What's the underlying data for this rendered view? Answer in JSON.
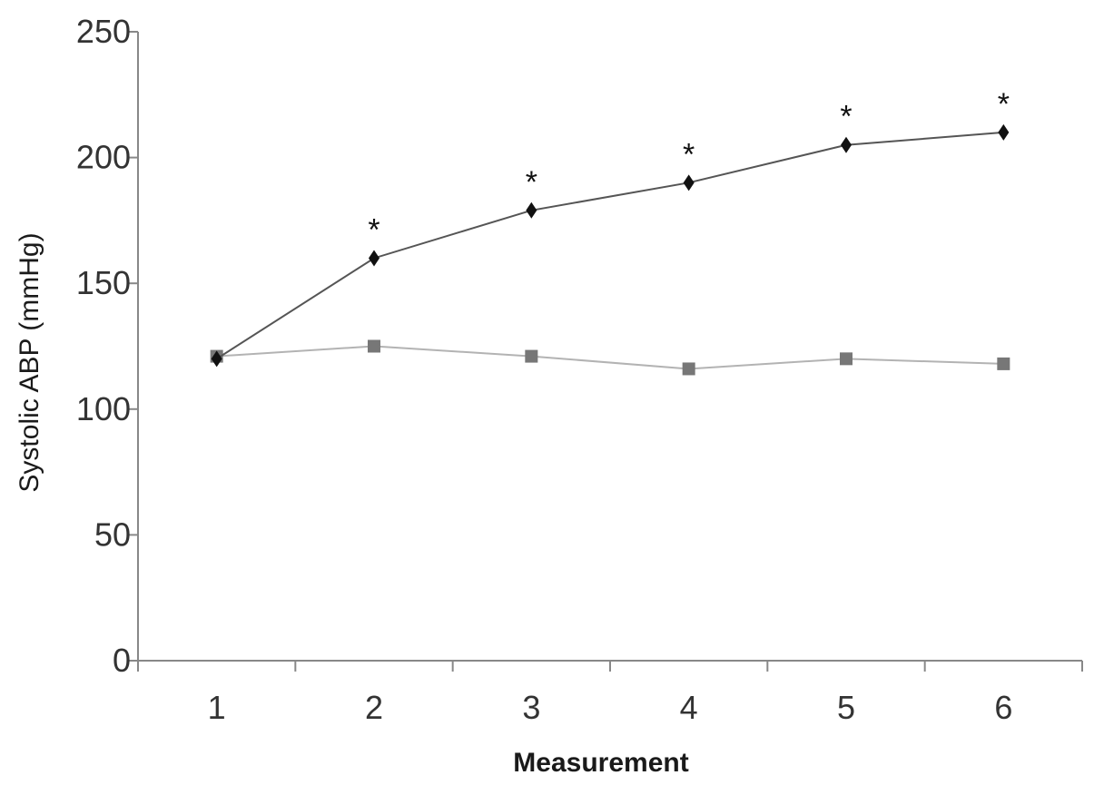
{
  "chart_data": {
    "type": "line",
    "title": "",
    "xlabel": "Measurement",
    "ylabel": "Systolic ABP (mmHg)",
    "categories": [
      "1",
      "2",
      "3",
      "4",
      "5",
      "6"
    ],
    "xlim": [
      0.5,
      6.5
    ],
    "ylim": [
      0,
      250
    ],
    "yticks": [
      "0",
      "50",
      "100",
      "150",
      "200",
      "250"
    ],
    "grid": false,
    "legend": "none",
    "series": [
      {
        "marker": "diamond",
        "color": "#111111",
        "line_color": "#555555",
        "values": [
          120,
          160,
          179,
          190,
          205,
          210
        ],
        "annotations": [
          "",
          "*",
          "*",
          "*",
          "*",
          "*"
        ]
      },
      {
        "marker": "square",
        "color": "#777777",
        "line_color": "#b3b3b3",
        "values": [
          121,
          125,
          121,
          116,
          120,
          118
        ],
        "annotations": [
          "",
          "",
          "",
          "",
          "",
          ""
        ]
      }
    ]
  }
}
